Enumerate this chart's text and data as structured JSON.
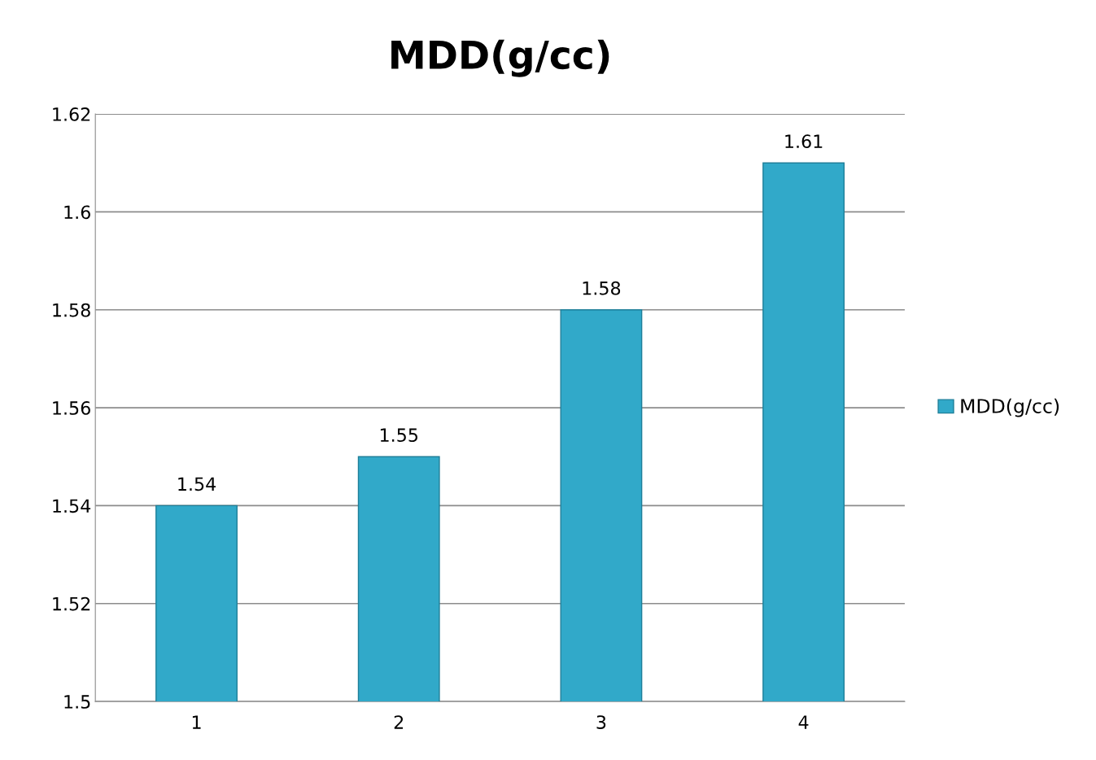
{
  "chart_data": {
    "type": "bar",
    "title": "MDD(g/cc)",
    "categories": [
      "1",
      "2",
      "3",
      "4"
    ],
    "series": [
      {
        "name": "MDD(g/cc)",
        "color": "#31a9c9",
        "values": [
          1.54,
          1.55,
          1.58,
          1.61
        ]
      }
    ],
    "ylim": [
      1.5,
      1.62
    ],
    "yticks": [
      1.5,
      1.52,
      1.54,
      1.56,
      1.58,
      1.6,
      1.62
    ],
    "grid": "y",
    "legend": "right",
    "data_labels": true
  }
}
